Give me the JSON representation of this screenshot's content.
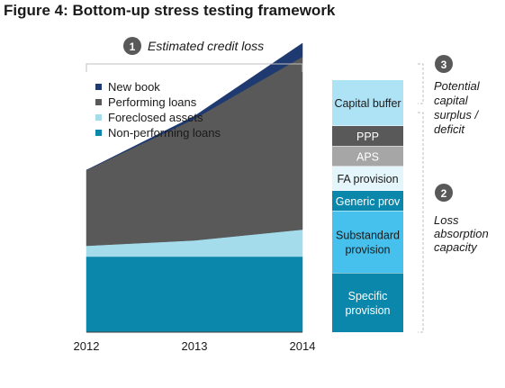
{
  "figure": {
    "title": "Figure 4: Bottom-up stress testing framework",
    "colors": {
      "non_performing": "#0a87aa",
      "foreclosed": "#a4dcec",
      "performing": "#595959",
      "new_book": "#1f3a70",
      "capital_buffer": "#aee2f5",
      "ppp": "#595959",
      "aps": "#a6a6a6",
      "fa_provision": "#e4f5fb",
      "generic_prov": "#0a87aa",
      "substandard": "#46c0ec",
      "specific": "#0a87aa",
      "badge": "#595959",
      "bracket": "#bfbfbf"
    }
  },
  "callouts": {
    "credit_loss": {
      "number": "1",
      "text": "Estimated credit loss"
    },
    "capital": {
      "number": "3",
      "lines": [
        "Potential",
        "capital",
        "surplus /",
        "deficit"
      ]
    },
    "absorption": {
      "number": "2",
      "lines": [
        "Loss",
        "absorption",
        "capacity"
      ]
    }
  },
  "chart_data": {
    "type": "area",
    "x": [
      "2012",
      "2013",
      "2014"
    ],
    "stacked": true,
    "series": [
      {
        "name": "Non-performing loans",
        "values": [
          0.28,
          0.28,
          0.28
        ]
      },
      {
        "name": "Foreclosed assets",
        "values": [
          0.04,
          0.06,
          0.1
        ]
      },
      {
        "name": "Performing loans",
        "values": [
          0.28,
          0.45,
          0.64
        ]
      },
      {
        "name": "New book",
        "values": [
          0.0,
          0.01,
          0.05
        ]
      }
    ],
    "legend_order": [
      "New book",
      "Performing loans",
      "Foreclosed assets",
      "Non-performing loans"
    ],
    "legend_position": "top-left",
    "y_axis": "none",
    "grid": false,
    "stack_bar": {
      "segments": [
        {
          "label": "Specific provision",
          "lines": [
            "Specific",
            "provision"
          ],
          "value": 0.22,
          "color_key": "specific",
          "text_color": "#ffffff"
        },
        {
          "label": "Substandard provision",
          "lines": [
            "Substandard",
            "provision"
          ],
          "value": 0.23,
          "color_key": "substandard",
          "text_color": "#1a1a1a"
        },
        {
          "label": "Generic prov",
          "lines": [
            "Generic prov"
          ],
          "value": 0.075,
          "color_key": "generic_prov",
          "text_color": "#ffffff"
        },
        {
          "label": "FA provision",
          "lines": [
            "FA provision"
          ],
          "value": 0.09,
          "color_key": "fa_provision",
          "text_color": "#1a1a1a"
        },
        {
          "label": "APS",
          "lines": [
            "APS"
          ],
          "value": 0.075,
          "color_key": "aps",
          "text_color": "#ffffff"
        },
        {
          "label": "PPP",
          "lines": [
            "PPP"
          ],
          "value": 0.075,
          "color_key": "ppp",
          "text_color": "#ffffff"
        },
        {
          "label": "Capital buffer",
          "lines": [
            "Capital buffer"
          ],
          "value": 0.17,
          "color_key": "capital_buffer",
          "text_color": "#1a1a1a"
        }
      ]
    }
  }
}
